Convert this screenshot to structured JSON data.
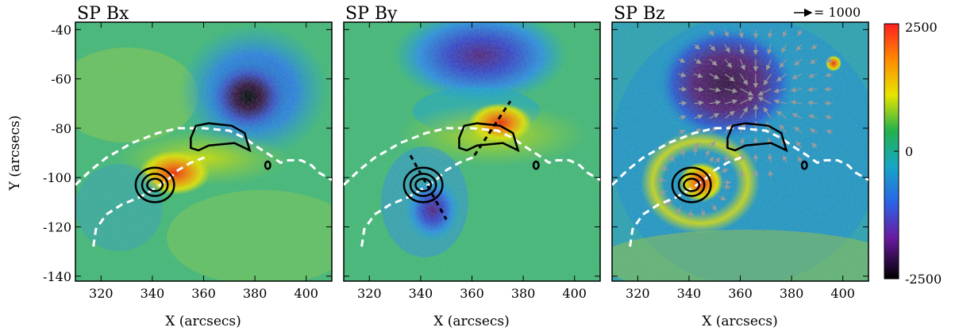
{
  "chart_data": {
    "type": "heatmap",
    "panels": [
      {
        "id": "bx",
        "title": "SP Bx",
        "xlabel": "X (arcsecs)",
        "ylabel": "Y (arcsecs)"
      },
      {
        "id": "by",
        "title": "SP By",
        "xlabel": "X (arcsecs)",
        "ylabel": ""
      },
      {
        "id": "bz",
        "title": "SP Bz",
        "xlabel": "X (arcsecs)",
        "ylabel": "",
        "vector_key": "= 1000"
      }
    ],
    "x_range": [
      310,
      410
    ],
    "y_range": [
      -142,
      -37
    ],
    "x_ticks": [
      320,
      340,
      360,
      380,
      400
    ],
    "y_ticks": [
      -40,
      -60,
      -80,
      -100,
      -120,
      -140
    ],
    "colorbar": {
      "range": [
        -2500,
        2500
      ],
      "tick_labels": [
        "2500",
        "0",
        "-2500"
      ],
      "tick_values": [
        2500,
        0,
        -2500
      ]
    },
    "contours": [
      {
        "name": "south",
        "center": [
          341,
          -103
        ],
        "rings": [
          [
            3,
            2.5
          ],
          [
            5,
            4.5
          ],
          [
            7.5,
            7
          ]
        ]
      },
      {
        "name": "north",
        "path": [
          [
            355,
            -84
          ],
          [
            357,
            -79
          ],
          [
            362,
            -78
          ],
          [
            371,
            -79
          ],
          [
            376,
            -82
          ],
          [
            378,
            -89
          ],
          [
            372,
            -86
          ],
          [
            362,
            -87
          ],
          [
            358,
            -89
          ],
          [
            355,
            -88
          ],
          [
            355,
            -84
          ]
        ]
      },
      {
        "name": "small",
        "center": [
          385,
          -95
        ],
        "rings": [
          [
            1,
            1.5
          ]
        ]
      }
    ],
    "polarity_inversion_line": [
      [
        310,
        -103
      ],
      [
        316,
        -97
      ],
      [
        322,
        -92
      ],
      [
        332,
        -86
      ],
      [
        342,
        -82
      ],
      [
        350,
        -80
      ],
      [
        360,
        -80
      ],
      [
        370,
        -81
      ],
      [
        376,
        -84
      ],
      [
        380,
        -87
      ],
      [
        386,
        -91
      ],
      [
        390,
        -94
      ],
      [
        393,
        -93
      ],
      [
        398,
        -93
      ],
      [
        402,
        -95
      ],
      [
        405,
        -98
      ],
      [
        410,
        -101
      ]
    ],
    "lower_dashed_line": [
      [
        317,
        -128
      ],
      [
        318,
        -121
      ],
      [
        322,
        -115
      ],
      [
        328,
        -111
      ],
      [
        335,
        -108
      ],
      [
        340,
        -105
      ],
      [
        346,
        -101
      ],
      [
        350,
        -97
      ],
      [
        355,
        -94
      ],
      [
        360,
        -92
      ],
      [
        362,
        -91
      ]
    ],
    "slits": [
      {
        "panel": "by",
        "from": [
          336,
          -91
        ],
        "to": [
          350,
          -117
        ]
      },
      {
        "panel": "by",
        "from": [
          361,
          -91
        ],
        "to": [
          375,
          -69
        ]
      }
    ],
    "grid": false,
    "legend": "none"
  }
}
